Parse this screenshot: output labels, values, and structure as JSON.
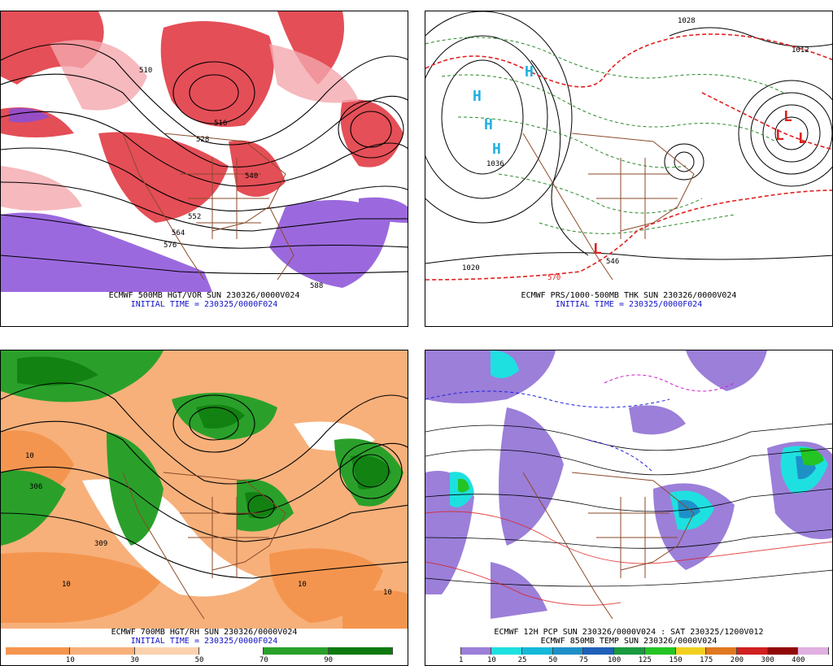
{
  "panels": [
    {
      "id": "p1",
      "caption": "ECMWF 500MB HGT/VOR SUN 230326/0000V024",
      "initial": "INITIAL TIME = 230325/0000F024",
      "labels": [
        "516",
        "528",
        "540",
        "552",
        "564",
        "576",
        "588",
        "510"
      ]
    },
    {
      "id": "p2",
      "caption": "ECMWF PRS/1000-500MB THK SUN 230326/0000V024",
      "initial": "INITIAL TIME = 230325/0000F024",
      "labels": [
        "1020",
        "1028",
        "1036",
        "1012",
        "570",
        "546"
      ],
      "highs": [
        "H",
        "H",
        "H",
        "H"
      ],
      "lows": [
        "L",
        "L",
        "L",
        "L"
      ]
    },
    {
      "id": "p3",
      "caption": "ECMWF 700MB HGT/RH SUN 230326/0000V024",
      "initial": "INITIAL TIME = 230325/0000F024",
      "labels": [
        "10",
        "10",
        "10",
        "10",
        "309",
        "306"
      ]
    },
    {
      "id": "p4",
      "caption": "ECMWF 12H PCP SUN 230326/0000V024 : SAT 230325/1200V012",
      "initial": "ECMWF 850MB TEMP SUN 230326/0000V024"
    }
  ],
  "rh_colorbar": {
    "ticks": [
      "10",
      "30",
      "50",
      "70",
      "90"
    ],
    "colors": [
      "#f4954f",
      "#f7b07a",
      "#fbd2ad",
      "#ffffff",
      "#2aa02a",
      "#0d7a0d"
    ]
  },
  "pcp_colorbar": {
    "ticks": [
      "1",
      "10",
      "25",
      "50",
      "75",
      "100",
      "125",
      "150",
      "175",
      "200",
      "300",
      "400"
    ],
    "colors": [
      "#ffffff",
      "#9b7fd9",
      "#1fe0e0",
      "#14b9d9",
      "#1e90c8",
      "#2060b8",
      "#1a9a40",
      "#24c424",
      "#f0d020",
      "#e07820",
      "#d02020",
      "#900808",
      "#e0b0e0"
    ]
  }
}
